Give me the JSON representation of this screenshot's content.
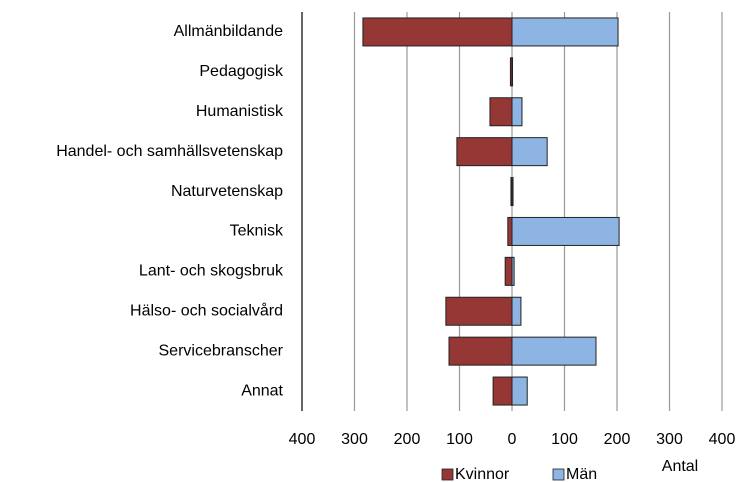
{
  "chart_data": {
    "type": "bar",
    "orientation": "horizontal",
    "stacked": false,
    "categories": [
      "Allmänbildande",
      "Pedagogisk",
      "Humanistisk",
      "Handel- och samhällsvetenskap",
      "Naturvetenskap",
      "Teknisk",
      "Lant- och skogsbruk",
      "Hälso- och socialvård",
      "Servicebranscher",
      "Annat"
    ],
    "series": [
      {
        "name": "Kvinnor",
        "color": "#953735",
        "values": [
          -284,
          -3,
          -42,
          -105,
          -2,
          -8,
          -13,
          -126,
          -120,
          -36
        ]
      },
      {
        "name": "Män",
        "color": "#8db4e2",
        "values": [
          202,
          1,
          19,
          67,
          2,
          204,
          4,
          17,
          160,
          29
        ]
      }
    ],
    "xlabel": "Antal",
    "xlim": [
      -400,
      400
    ],
    "xticks": [
      {
        "value": -400,
        "label": "400"
      },
      {
        "value": -300,
        "label": "300"
      },
      {
        "value": -200,
        "label": "200"
      },
      {
        "value": -100,
        "label": "100"
      },
      0,
      100,
      200,
      300,
      400
    ],
    "grid": true,
    "legend": "bottom"
  }
}
